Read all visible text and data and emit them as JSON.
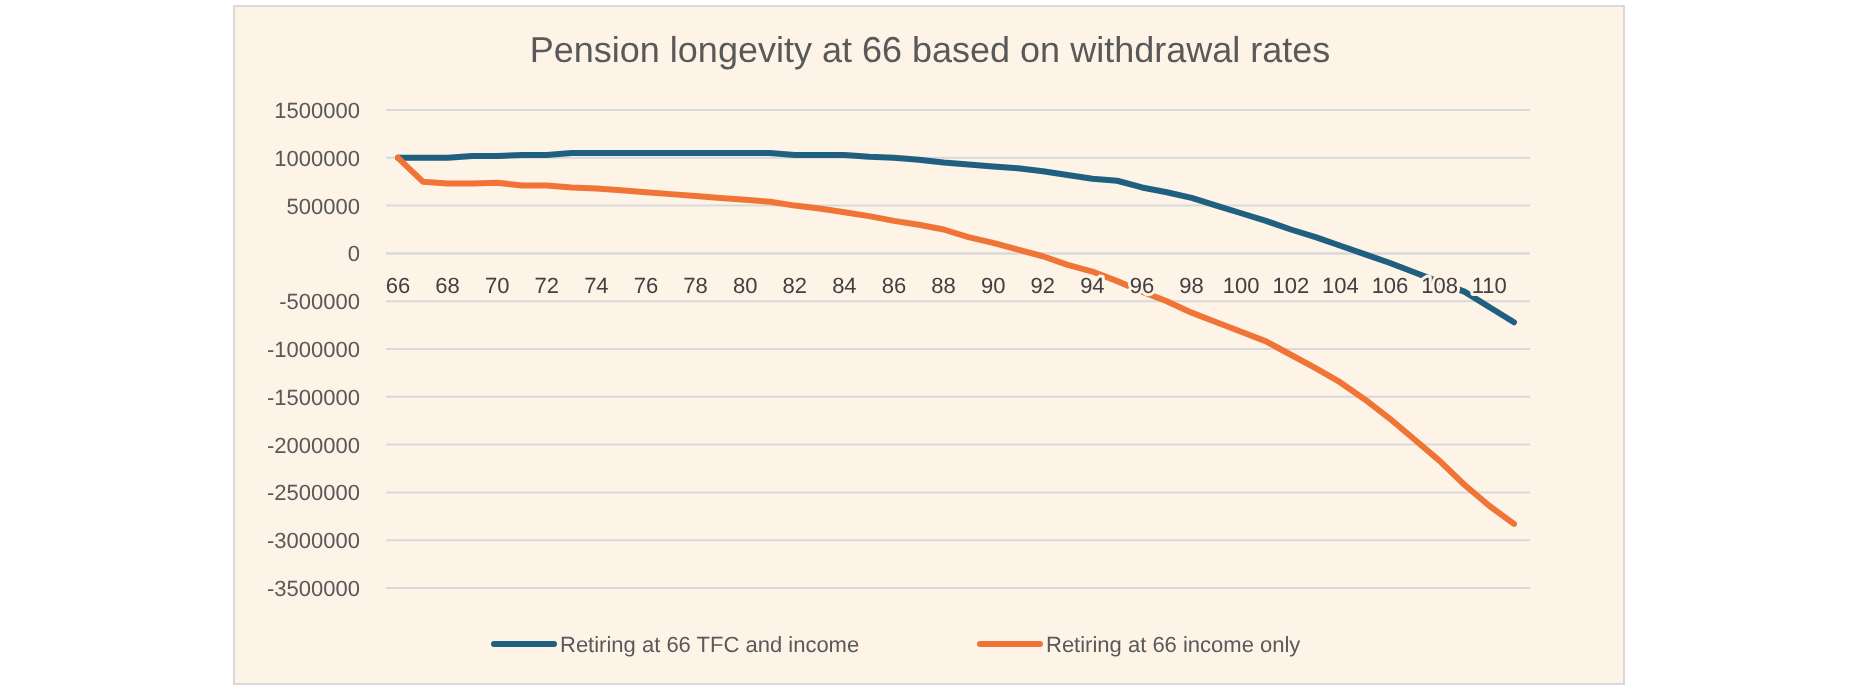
{
  "chart_data": {
    "type": "line",
    "title": "Pension longevity at 66 based on withdrawal rates",
    "categories": [
      "66",
      null,
      "68",
      null,
      "70",
      null,
      "72",
      null,
      "74",
      null,
      "76",
      null,
      "78",
      null,
      "80",
      null,
      "82",
      null,
      "84",
      null,
      "86",
      null,
      "88",
      null,
      "90",
      null,
      "92",
      null,
      "94",
      null,
      "96",
      null,
      "98",
      null,
      "100",
      null,
      "102",
      null,
      "104",
      null,
      "106",
      null,
      "108",
      null,
      "110",
      null
    ],
    "series": [
      {
        "name": "Retiring at 66 TFC and income",
        "color": "#1f5f80",
        "values": [
          1000000,
          1000000,
          1000000,
          1020000,
          1020000,
          1030000,
          1030000,
          1050000,
          1050000,
          1050000,
          1050000,
          1050000,
          1050000,
          1050000,
          1050000,
          1050000,
          1030000,
          1030000,
          1030000,
          1010000,
          1000000,
          980000,
          950000,
          930000,
          910000,
          890000,
          860000,
          820000,
          780000,
          760000,
          690000,
          640000,
          580000,
          500000,
          420000,
          340000,
          250000,
          170000,
          80000,
          -10000,
          -100000,
          -200000,
          -300000,
          -400000,
          -560000,
          -720000
        ]
      },
      {
        "name": "Retiring at 66 income only",
        "color": "#f07436",
        "values": [
          1000000,
          750000,
          730000,
          730000,
          740000,
          710000,
          710000,
          690000,
          680000,
          660000,
          640000,
          620000,
          600000,
          580000,
          560000,
          540000,
          500000,
          470000,
          430000,
          390000,
          340000,
          300000,
          250000,
          170000,
          110000,
          40000,
          -30000,
          -120000,
          -190000,
          -290000,
          -400000,
          -500000,
          -620000,
          -720000,
          -820000,
          -920000,
          -1060000,
          -1200000,
          -1350000,
          -1530000,
          -1730000,
          -1950000,
          -2170000,
          -2420000,
          -2640000,
          -2830000
        ]
      }
    ],
    "ylim": [
      -3500000,
      1500000
    ],
    "yticks": [
      -3500000,
      -3000000,
      -2500000,
      -2000000,
      -1500000,
      -1000000,
      -500000,
      0,
      500000,
      1000000,
      1500000
    ],
    "grid": "y",
    "legend": "bottom",
    "marker": "none",
    "line_style": "solid"
  }
}
